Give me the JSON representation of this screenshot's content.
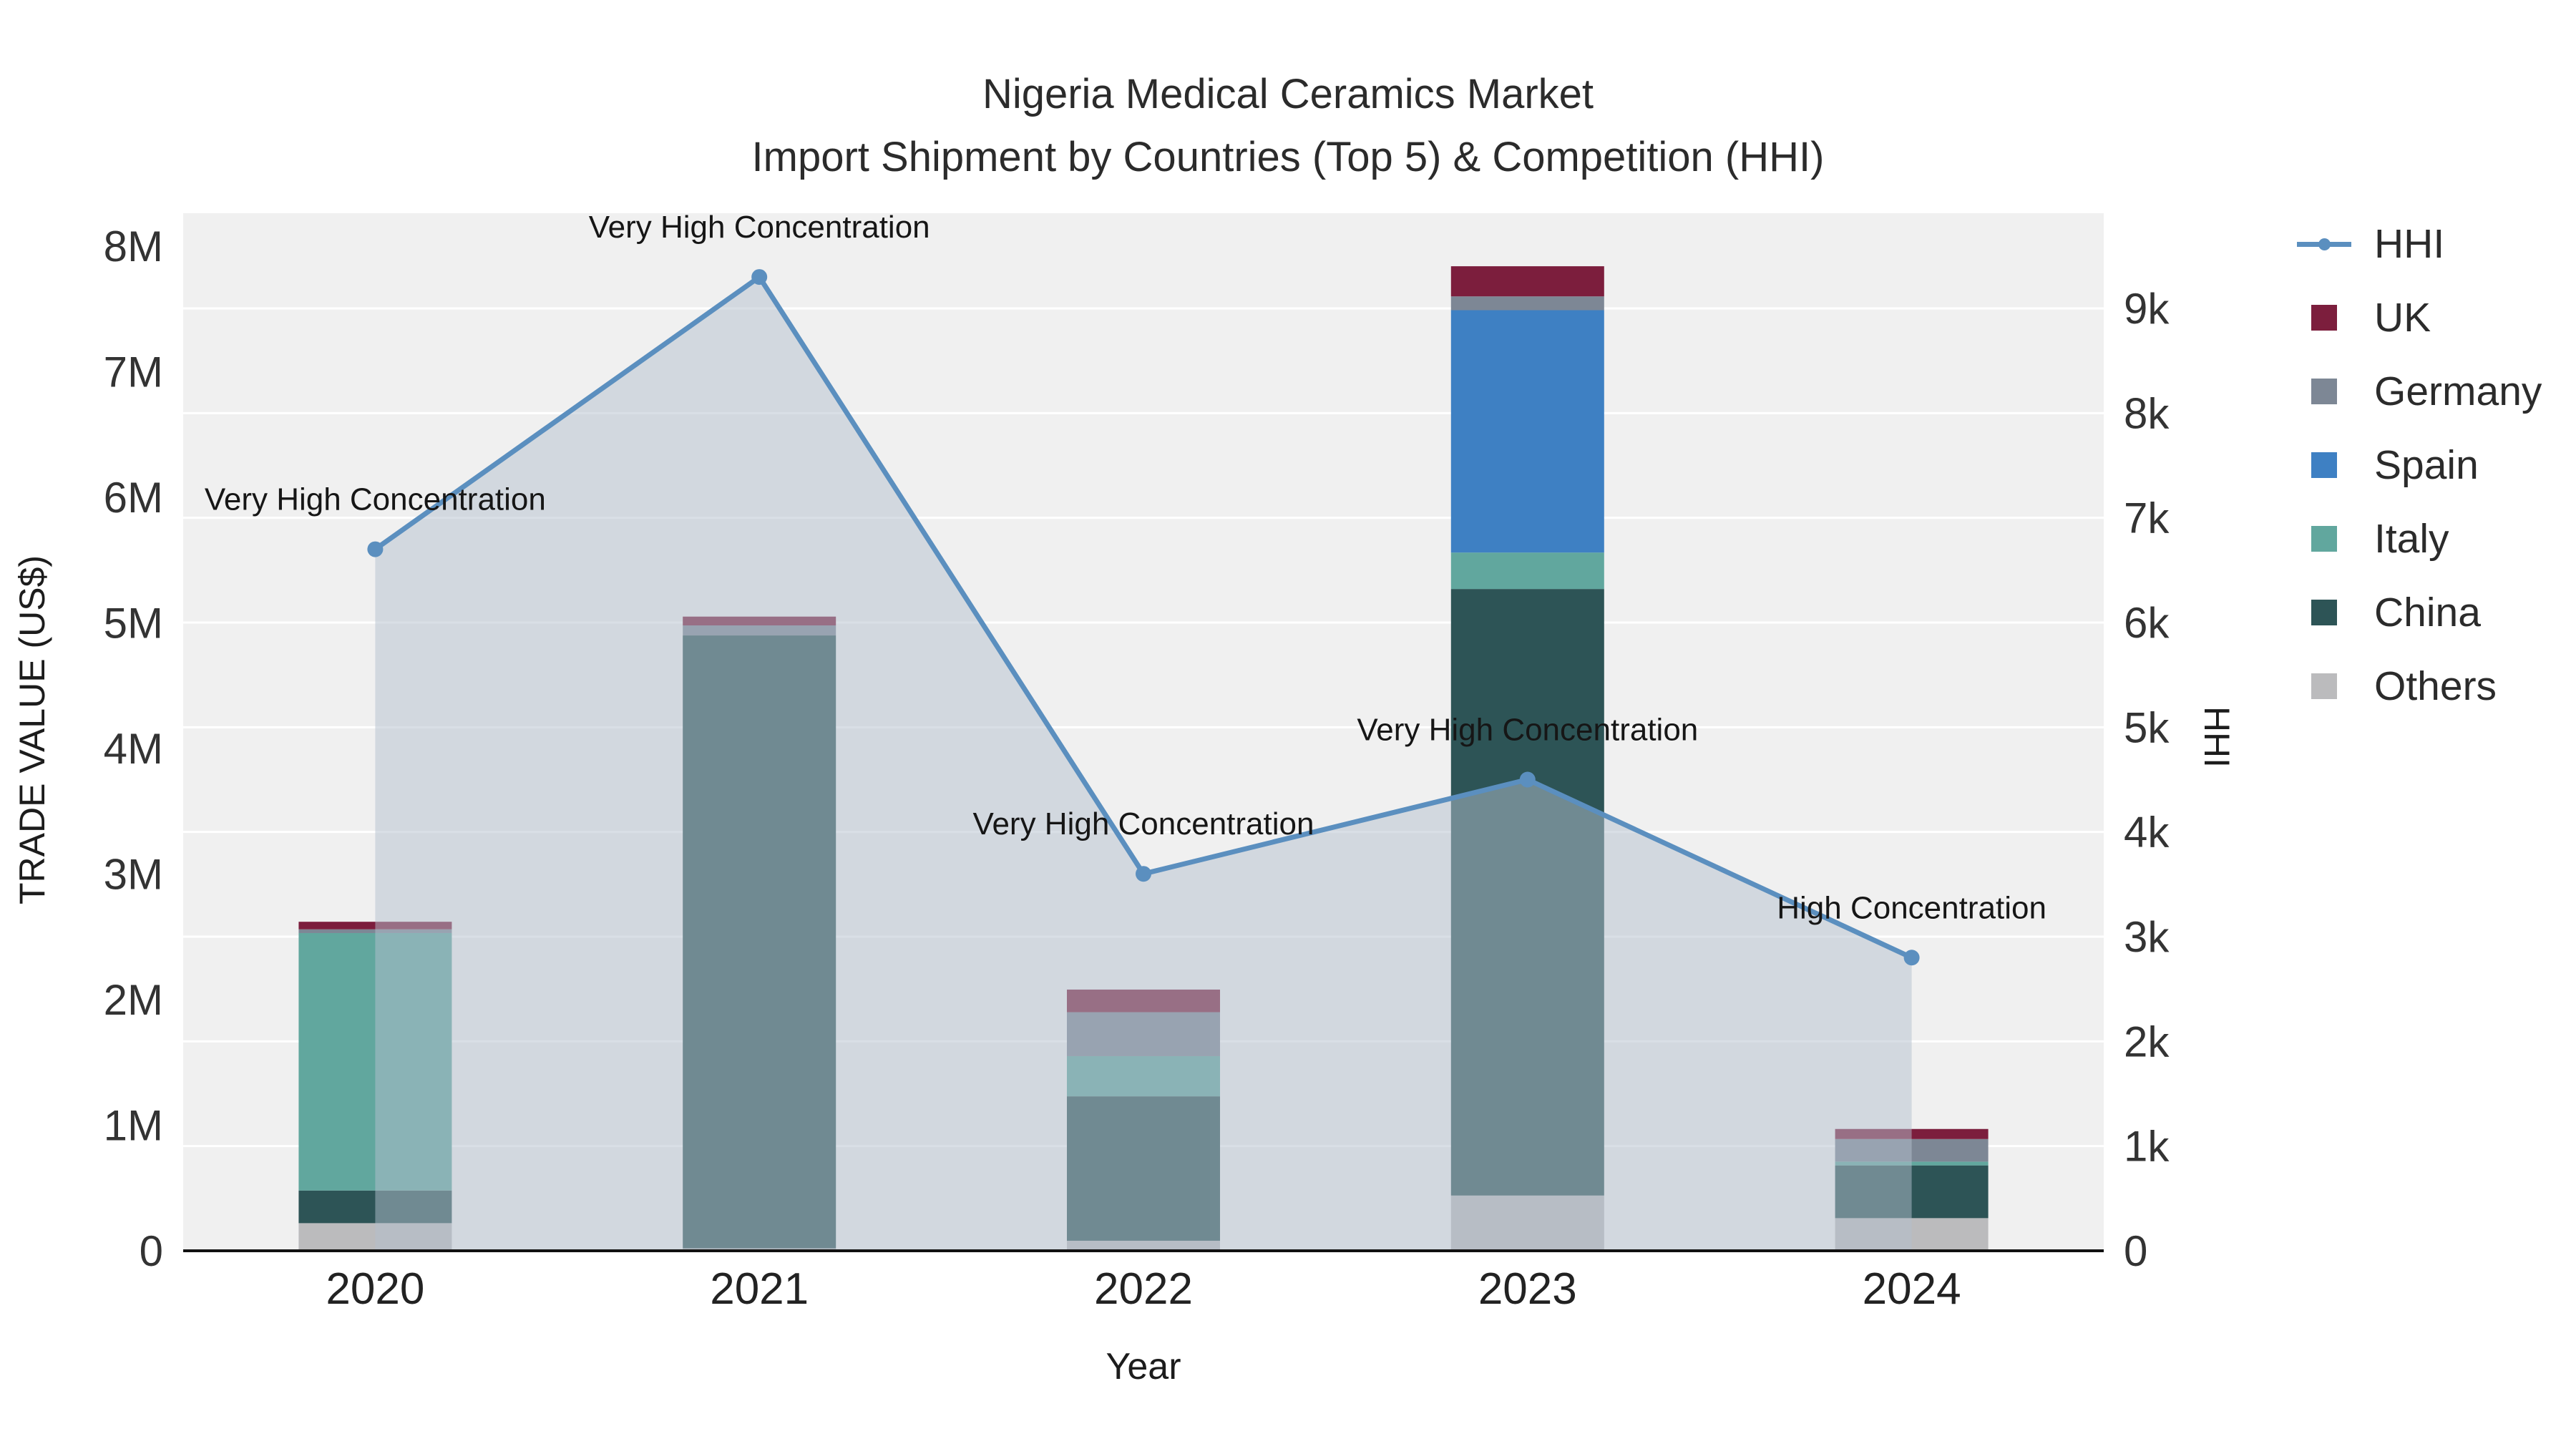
{
  "chart_data": {
    "type": "bar",
    "subtype": "stacked-bars-with-line-overlay-and-area",
    "title": "Nigeria Medical Ceramics Market",
    "subtitle": "Import Shipment by Countries (Top 5) & Competition (HHI)",
    "xlabel": "Year",
    "ylabel": "TRADE VALUE (US$)",
    "ylabel_right": "HHI",
    "categories": [
      "2020",
      "2021",
      "2022",
      "2023",
      "2024"
    ],
    "series": [
      {
        "name": "Others",
        "color": "#bbbbbd",
        "values": [
          220000,
          20000,
          80000,
          440000,
          260000
        ]
      },
      {
        "name": "China",
        "color": "#2d5456",
        "values": [
          260000,
          4880000,
          1150000,
          4830000,
          420000
        ]
      },
      {
        "name": "Italy",
        "color": "#61a79e",
        "values": [
          2050000,
          0,
          320000,
          290000,
          30000
        ]
      },
      {
        "name": "Spain",
        "color": "#3e80c3",
        "values": [
          0,
          0,
          0,
          1930000,
          0
        ]
      },
      {
        "name": "Germany",
        "color": "#7d8795",
        "values": [
          30000,
          80000,
          350000,
          110000,
          180000
        ]
      },
      {
        "name": "UK",
        "color": "#7c1e3d",
        "values": [
          60000,
          70000,
          180000,
          240000,
          80000
        ]
      }
    ],
    "line_series": {
      "name": "HHI",
      "color": "#5b8fbf",
      "area_fill": "rgba(180,192,206,0.5)",
      "values": [
        6700,
        9300,
        3600,
        4500,
        2800
      ],
      "annotations": [
        "Very High Concentration",
        "Very High Concentration",
        "Very High Concentration",
        "Very High Concentration",
        "High Concentration"
      ]
    },
    "y_left_axis": {
      "min": 0,
      "max": 8000000,
      "ticks": [
        "0",
        "1M",
        "2M",
        "3M",
        "4M",
        "5M",
        "6M",
        "7M",
        "8M"
      ]
    },
    "y_right_axis": {
      "min": 0,
      "max": 9000,
      "ticks": [
        "0",
        "1k",
        "2k",
        "3k",
        "4k",
        "5k",
        "6k",
        "7k",
        "8k",
        "9k"
      ]
    },
    "grid": true,
    "legend_position": "right"
  },
  "legend": {
    "items": [
      {
        "label": "HHI",
        "color": "#5b8fbf",
        "type": "line"
      },
      {
        "label": "UK",
        "color": "#7c1e3d",
        "type": "square"
      },
      {
        "label": "Germany",
        "color": "#7d8795",
        "type": "square"
      },
      {
        "label": "Spain",
        "color": "#3e80c3",
        "type": "square"
      },
      {
        "label": "Italy",
        "color": "#61a79e",
        "type": "square"
      },
      {
        "label": "China",
        "color": "#2d5456",
        "type": "square"
      },
      {
        "label": "Others",
        "color": "#bbbbbd",
        "type": "square"
      }
    ]
  },
  "plot": {
    "background": "#f0f0f0",
    "gridline_color": "#ffffff",
    "axis_line_color": "#111111",
    "tick_color": "#333333"
  }
}
